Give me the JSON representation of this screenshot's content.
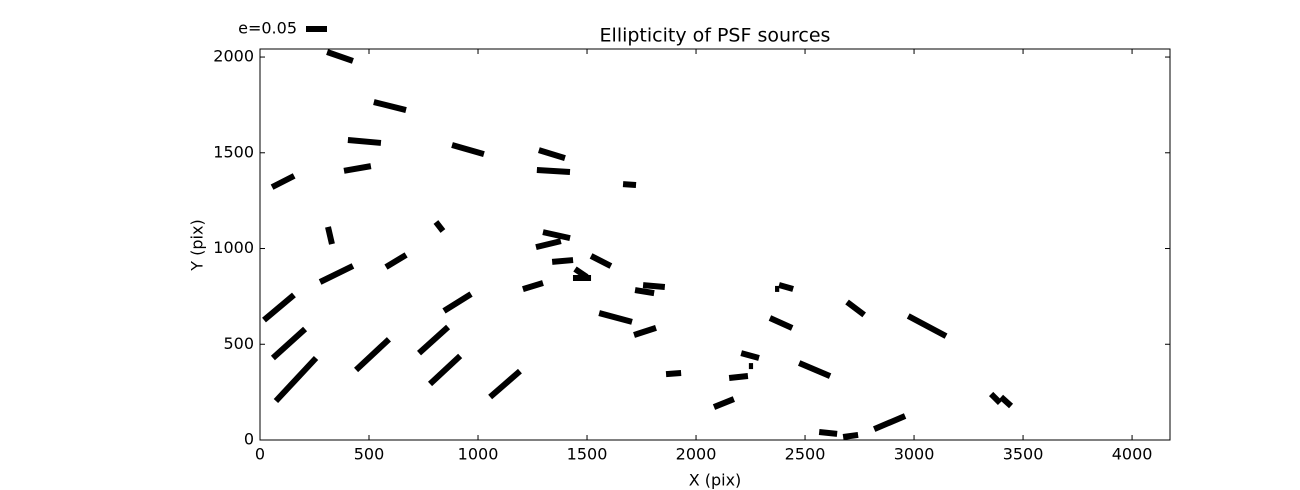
{
  "chart_data": {
    "type": "whisker",
    "title": "Ellipticity of PSF sources",
    "xlabel": "X (pix)",
    "ylabel": "Y (pix)",
    "key": {
      "value": 0.05,
      "label": "e=0.05"
    },
    "color": "#000000",
    "xlim": [
      0,
      4174
    ],
    "ylim": [
      0,
      2042
    ],
    "xticks": [
      0,
      500,
      1000,
      1500,
      2000,
      2500,
      3000,
      3500,
      4000
    ],
    "yticks": [
      0,
      500,
      1000,
      1500,
      2000
    ],
    "x": [
      367,
      596,
      479,
      954,
      1339,
      106,
      447,
      1346,
      1695,
      321,
      823,
      1360,
      1323,
      351,
      624,
      1388,
      1564,
      1472,
      1477,
      87,
      1252,
      1764,
      1807,
      906,
      1631,
      1766,
      133,
      516,
      796,
      165,
      849,
      1124,
      1897,
      2128,
      2195,
      2248,
      2252,
      2372,
      2413,
      2390,
      2544,
      2732,
      3060,
      2888,
      2606,
      2709,
      3374,
      3422
    ],
    "y": [
      2003,
      1744,
      1559,
      1517,
      1493,
      1350,
      1418,
      1405,
      1334,
      1068,
      1115,
      1070,
      1023,
      867,
      935,
      935,
      935,
      872,
      846,
      692,
      804,
      775,
      804,
      718,
      640,
      567,
      504,
      446,
      522,
      316,
      366,
      292,
      347,
      193,
      329,
      441,
      386,
      789,
      799,
      611,
      368,
      687,
      595,
      91,
      37,
      21,
      217,
      201
    ],
    "e": [
      0.065,
      0.079,
      0.079,
      0.079,
      0.065,
      0.059,
      0.065,
      0.079,
      0.031,
      0.042,
      0.027,
      0.066,
      0.061,
      0.087,
      0.056,
      0.05,
      0.053,
      0.034,
      0.043,
      0.093,
      0.05,
      0.046,
      0.052,
      0.076,
      0.081,
      0.055,
      0.103,
      0.107,
      0.093,
      0.14,
      0.098,
      0.094,
      0.036,
      0.051,
      0.045,
      0.044,
      0.01,
      0.01,
      0.035,
      0.058,
      0.08,
      0.051,
      0.102,
      0.08,
      0.043,
      0.036,
      0.03,
      0.032
    ],
    "angle": [
      -19,
      -14,
      -5,
      -16,
      -17,
      27,
      10,
      -3.5,
      -4,
      -77,
      -52,
      -12.5,
      13.5,
      26,
      31,
      5,
      -27,
      -34,
      0,
      40,
      17,
      -9,
      -5,
      32,
      -15,
      18,
      42,
      43,
      42,
      47,
      43,
      41,
      4,
      22,
      6,
      -15.5,
      0,
      0,
      -16,
      -24,
      -23,
      -37,
      -28,
      23,
      -6,
      8,
      -45,
      -42
    ]
  }
}
